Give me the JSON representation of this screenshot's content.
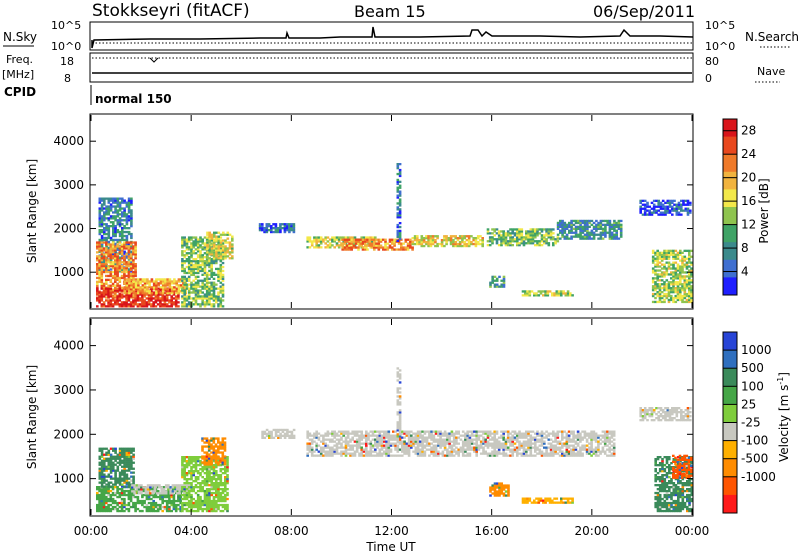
{
  "header": {
    "station": "Stokkseyri (fitACF)",
    "beam": "Beam 15",
    "date": "06/Sep/2011"
  },
  "panels": {
    "nsky": {
      "left_label": "N.Sky",
      "ticks_left": [
        "10^5",
        "10^0"
      ],
      "ticks_right": [
        "10^5",
        "10^0"
      ],
      "right_label": "N.Search"
    },
    "freq": {
      "left_label_1": "Freq.",
      "left_label_2": "[MHz]",
      "ticks_left": [
        "18",
        "8"
      ],
      "ticks_right": [
        "80",
        "0"
      ],
      "right_label": "Nave"
    },
    "cpid": {
      "label": "CPID",
      "value": "normal 150"
    }
  },
  "chart_data": [
    {
      "type": "heatmap",
      "parameter": "Power",
      "ylabel": "Slant Range [km]",
      "xlabel": "Time UT",
      "x_ticks": [
        "00:00",
        "04:00",
        "08:00",
        "12:00",
        "16:00",
        "20:00",
        "00:00"
      ],
      "xlim_hours": [
        0,
        24
      ],
      "y_ticks": [
        "1000",
        "2000",
        "3000",
        "4000"
      ],
      "ylim_km": [
        180,
        4600
      ],
      "colorbar": {
        "label": "Power [dB]",
        "ticks": [
          "4",
          "8",
          "12",
          "16",
          "20",
          "24",
          "28"
        ],
        "range": [
          0,
          30
        ],
        "colors": [
          "#1f1fff",
          "#3f6fd0",
          "#3b8a8c",
          "#3fa366",
          "#8fc44f",
          "#f3e84a",
          "#f1b33e",
          "#ef7a2a",
          "#e8481e",
          "#d9141a"
        ]
      },
      "regions": [
        {
          "t": [
            0.3,
            1.6
          ],
          "r": [
            1000,
            2700
          ],
          "value": 7
        },
        {
          "t": [
            0.2,
            1.8
          ],
          "r": [
            400,
            1700
          ],
          "value": 22
        },
        {
          "t": [
            0.2,
            3.5
          ],
          "r": [
            200,
            650
          ],
          "value": 28
        },
        {
          "t": [
            1.3,
            3.8
          ],
          "r": [
            500,
            850
          ],
          "value": 20
        },
        {
          "t": [
            3.6,
            5.3
          ],
          "r": [
            200,
            1800
          ],
          "value": 13
        },
        {
          "t": [
            4.6,
            5.6
          ],
          "r": [
            1300,
            1900
          ],
          "value": 16
        },
        {
          "t": [
            6.7,
            8.1
          ],
          "r": [
            1900,
            2100
          ],
          "value": 5
        },
        {
          "t": [
            8.6,
            11.3
          ],
          "r": [
            1550,
            1780
          ],
          "value": 16
        },
        {
          "t": [
            10.0,
            12.8
          ],
          "r": [
            1500,
            1750
          ],
          "value": 22
        },
        {
          "t": [
            12.8,
            15.6
          ],
          "r": [
            1580,
            1850
          ],
          "value": 17
        },
        {
          "t": [
            15.8,
            18.6
          ],
          "r": [
            1600,
            2000
          ],
          "value": 12
        },
        {
          "t": [
            18.6,
            21.2
          ],
          "r": [
            1750,
            2200
          ],
          "value": 8
        },
        {
          "t": [
            21.9,
            23.9
          ],
          "r": [
            2300,
            2650
          ],
          "value": 4
        },
        {
          "t": [
            22.4,
            24.0
          ],
          "r": [
            300,
            1500
          ],
          "value": 14
        },
        {
          "t": [
            17.2,
            19.2
          ],
          "r": [
            450,
            560
          ],
          "value": 14
        },
        {
          "t": [
            15.9,
            16.5
          ],
          "r": [
            650,
            900
          ],
          "value": 8
        },
        {
          "t": [
            12.2,
            12.3
          ],
          "r": [
            1700,
            3500
          ],
          "value": 6
        }
      ]
    },
    {
      "type": "heatmap",
      "parameter": "Velocity",
      "ylabel": "Slant Range [km]",
      "xlabel": "Time UT",
      "x_ticks": [
        "00:00",
        "04:00",
        "08:00",
        "12:00",
        "16:00",
        "20:00",
        "00:00"
      ],
      "xlim_hours": [
        0,
        24
      ],
      "y_ticks": [
        "1000",
        "2000",
        "3000",
        "4000"
      ],
      "ylim_km": [
        180,
        4600
      ],
      "colorbar": {
        "label": "Velocity [m s",
        "label_sup": "-1",
        "label_end": "]",
        "ticks": [
          "1000",
          "500",
          "100",
          "25",
          "-25",
          "-100",
          "-500",
          "-1000"
        ],
        "colors": [
          "#2744d6",
          "#2f6fbf",
          "#3a8a5a",
          "#45a647",
          "#7fcd3c",
          "#c8c8c0",
          "#ffb000",
          "#ff8c00",
          "#ff5500",
          "#ff1a1a"
        ]
      },
      "regions": [
        {
          "t": [
            0.2,
            3.6
          ],
          "r": [
            250,
            800
          ],
          "color": "#45a647"
        },
        {
          "t": [
            0.3,
            1.7
          ],
          "r": [
            800,
            1700
          ],
          "color": "#3a8a5a"
        },
        {
          "t": [
            1.6,
            3.9
          ],
          "r": [
            650,
            850
          ],
          "color": "#c8c8c0"
        },
        {
          "t": [
            3.6,
            5.4
          ],
          "r": [
            250,
            1500
          ],
          "color": "#7fcd3c"
        },
        {
          "t": [
            4.4,
            5.3
          ],
          "r": [
            1300,
            1900
          ],
          "color": "#ff8c00"
        },
        {
          "t": [
            6.8,
            8.1
          ],
          "r": [
            1900,
            2100
          ],
          "color": "#c8c8c0"
        },
        {
          "t": [
            8.6,
            20.9
          ],
          "r": [
            1500,
            2050
          ],
          "color": "#c8c8c0"
        },
        {
          "t": [
            21.9,
            23.9
          ],
          "r": [
            2300,
            2600
          ],
          "color": "#c8c8c0"
        },
        {
          "t": [
            17.2,
            19.2
          ],
          "r": [
            440,
            560
          ],
          "color": "#ffb000"
        },
        {
          "t": [
            15.9,
            16.7
          ],
          "r": [
            600,
            900
          ],
          "color": "#ff8c00"
        },
        {
          "t": [
            22.5,
            24.0
          ],
          "r": [
            250,
            1500
          ],
          "color": "#3a8a5a"
        },
        {
          "t": [
            23.2,
            24.0
          ],
          "r": [
            1000,
            1500
          ],
          "color": "#ff5500"
        },
        {
          "t": [
            12.2,
            12.3
          ],
          "r": [
            1800,
            3500
          ],
          "color": "#c8c8c0"
        }
      ]
    }
  ]
}
